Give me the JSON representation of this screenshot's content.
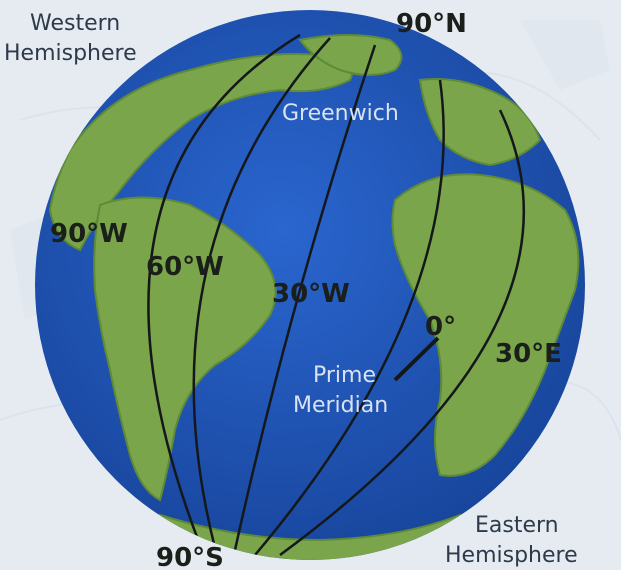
{
  "labels": {
    "western_line1": "Western",
    "western_line2": "Hemisphere",
    "eastern_line1": "Eastern",
    "eastern_line2": "Hemisphere",
    "north_pole": "90°N",
    "south_pole": "90°S",
    "greenwich": "Greenwich",
    "lon_90w": "90°W",
    "lon_60w": "60°W",
    "lon_30w": "30°W",
    "lon_0": "0°",
    "lon_30e": "30°E",
    "prime_line1": "Prime",
    "prime_line2": "Meridian"
  },
  "colors": {
    "ocean": "#1f56b8",
    "land": "#7aa54a",
    "meridian": "#14181a",
    "background": "#e9eef3"
  }
}
